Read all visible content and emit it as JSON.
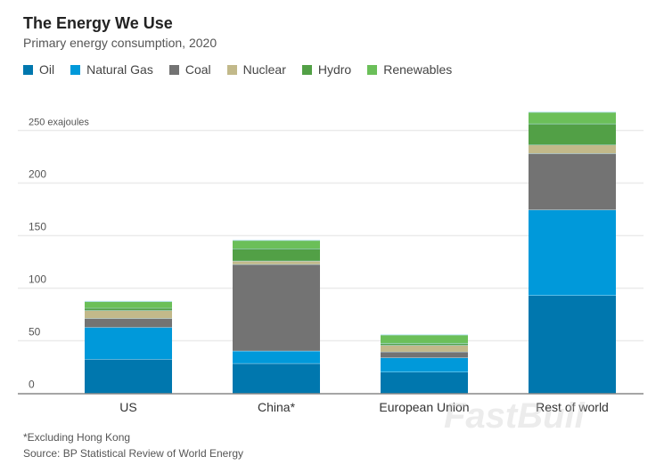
{
  "title": "The Energy We Use",
  "subtitle": "Primary energy consumption, 2020",
  "footnote": "*Excluding Hong Kong",
  "source": "Source: BP Statistical Review of World Energy",
  "watermark": "FastBull",
  "chart_data": {
    "type": "bar",
    "stacked": true,
    "unit": "exajoules",
    "categories": [
      "US",
      "China*",
      "European Union",
      "Rest of world"
    ],
    "series": [
      {
        "name": "Oil",
        "color": "#0077AE",
        "values": [
          32.5,
          28.5,
          20.3,
          93.2
        ]
      },
      {
        "name": "Natural Gas",
        "color": "#0099DA",
        "values": [
          30.3,
          11.9,
          13.6,
          81.4
        ]
      },
      {
        "name": "Coal",
        "color": "#737373",
        "values": [
          8.5,
          82.3,
          5.6,
          53.6
        ]
      },
      {
        "name": "Nuclear",
        "color": "#C2B98A",
        "values": [
          7.6,
          3.3,
          6.3,
          8.2
        ]
      },
      {
        "name": "Hydro",
        "color": "#52A046",
        "values": [
          2.2,
          11.7,
          1.7,
          20.1
        ]
      },
      {
        "name": "Renewables",
        "color": "#6BBF59",
        "values": [
          6.3,
          7.8,
          8.1,
          11.0
        ]
      }
    ],
    "yticks": [
      0,
      50,
      100,
      150,
      200,
      250
    ],
    "ytick_labels": [
      "0",
      "50",
      "100",
      "150",
      "200",
      "250 exajoules"
    ],
    "ylim": [
      0,
      250
    ],
    "grid": true,
    "legend": "top-left"
  }
}
